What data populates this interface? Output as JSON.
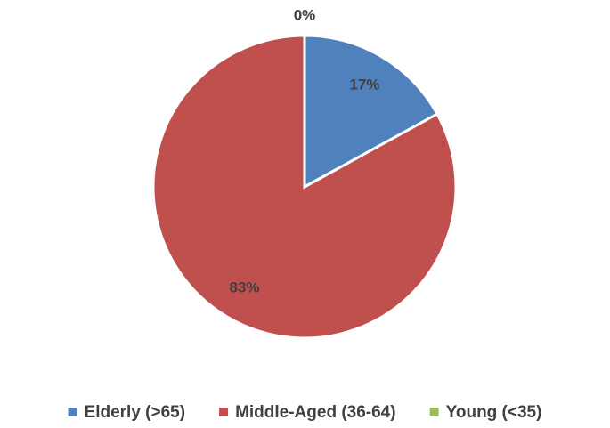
{
  "chart_data": {
    "type": "pie",
    "categories": [
      "Elderly (>65)",
      "Middle-Aged (36-64)",
      "Young (<35)"
    ],
    "values": [
      17,
      83,
      0
    ],
    "value_labels": [
      "17%",
      "83%",
      "0%"
    ],
    "colors": [
      "#4f81bd",
      "#c0504d",
      "#9bbb59"
    ],
    "legend": "bottom"
  }
}
